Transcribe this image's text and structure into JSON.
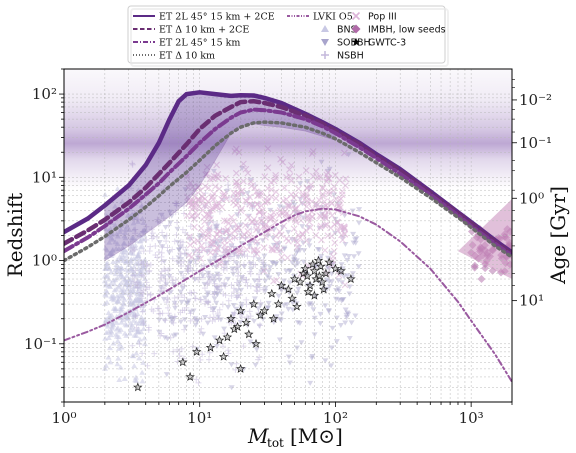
{
  "chart_data": {
    "type": "line",
    "xlabel": "M_tot [M_⊙]",
    "xlabel_main": "M",
    "xlabel_sub": "tot",
    "xlabel_unit": "[M⊙]",
    "ylabel": "Redshift",
    "ylabel_right": "Age  [Gyr]",
    "x_scale": "log",
    "y_scale": "log",
    "xlim": [
      1,
      2000
    ],
    "ylim": [
      0.02,
      200
    ],
    "grid": true,
    "legend_position": "top",
    "x_ticks": [
      {
        "value": 1,
        "label": "10⁰"
      },
      {
        "value": 10,
        "label": "10¹"
      },
      {
        "value": 100,
        "label": "10²"
      },
      {
        "value": 1000,
        "label": "10³"
      }
    ],
    "y_ticks": [
      {
        "value": 0.1,
        "label": "10⁻¹"
      },
      {
        "value": 1,
        "label": "10⁰"
      },
      {
        "value": 10,
        "label": "10¹"
      },
      {
        "value": 100,
        "label": "10²"
      }
    ],
    "right_ticks": [
      {
        "label": "10⁻²",
        "z": 85
      },
      {
        "label": "10⁻¹",
        "z": 26
      },
      {
        "label": "10⁰",
        "z": 5.6
      },
      {
        "label": "10¹",
        "z": 0.33
      }
    ],
    "series": [
      {
        "name": "ET 2L 45° 15 km + 2CE",
        "style": "solid",
        "color": "#5b2a86",
        "x": [
          1,
          1.5,
          2,
          3,
          4,
          5,
          6,
          7,
          8,
          10,
          13,
          17,
          20,
          25,
          30,
          40,
          60,
          80,
          100,
          150,
          200,
          300,
          500,
          800,
          1000,
          1500,
          2000
        ],
        "y": [
          2.2,
          3.2,
          4.6,
          8,
          14,
          26,
          50,
          82,
          100,
          105,
          100,
          95,
          97,
          96,
          90,
          78,
          58,
          46,
          38,
          26,
          19,
          12.5,
          6.8,
          3.8,
          2.9,
          1.75,
          1.25
        ]
      },
      {
        "name": "ET Δ 10 km + 2CE",
        "style": "dashed",
        "color": "#6a2e72",
        "x": [
          1,
          1.5,
          2,
          3,
          4,
          5,
          6,
          8,
          10,
          13,
          17,
          20,
          25,
          30,
          40,
          60,
          80,
          100,
          150,
          200,
          300,
          500,
          800,
          1000,
          1500,
          2000
        ],
        "y": [
          1.6,
          2.3,
          3.1,
          5,
          7.5,
          11,
          15,
          25,
          38,
          55,
          70,
          80,
          82,
          78,
          70,
          55,
          44,
          36,
          25,
          18,
          12,
          6.5,
          3.7,
          2.8,
          1.7,
          1.2
        ]
      },
      {
        "name": "ET 2L 45° 15 km",
        "style": "dashdot",
        "color": "#7b3a90",
        "x": [
          1,
          1.5,
          2,
          3,
          4,
          5,
          6,
          8,
          10,
          13,
          17,
          20,
          25,
          30,
          40,
          60,
          80,
          100,
          150,
          200,
          300,
          500,
          800,
          1000,
          1500,
          2000
        ],
        "y": [
          1.3,
          1.9,
          2.6,
          4.2,
          6.2,
          8.5,
          11.5,
          18,
          26,
          38,
          52,
          60,
          65,
          64,
          60,
          50,
          41,
          34,
          23,
          17,
          11,
          6.2,
          3.5,
          2.6,
          1.6,
          1.15
        ]
      },
      {
        "name": "ET Δ 10 km",
        "style": "dotted",
        "color": "#6b6b6b",
        "x": [
          1,
          1.5,
          2,
          3,
          4,
          5,
          6,
          8,
          10,
          13,
          17,
          20,
          25,
          30,
          40,
          60,
          80,
          100,
          150,
          200,
          300,
          500,
          800,
          1000,
          1500,
          2000
        ],
        "y": [
          1.0,
          1.45,
          1.95,
          3.1,
          4.4,
          6.0,
          7.8,
          11.5,
          16,
          24,
          34,
          40,
          45,
          46,
          45,
          40,
          34,
          29,
          20,
          15,
          10,
          5.7,
          3.3,
          2.5,
          1.5,
          1.1
        ]
      },
      {
        "name": "LVKI O5",
        "style": "dashdotdot",
        "color": "#9a5aa0",
        "x": [
          1,
          1.5,
          2,
          3,
          5,
          8,
          10,
          15,
          20,
          30,
          40,
          50,
          60,
          80,
          100,
          150,
          200,
          300,
          500,
          800,
          1000,
          1500,
          2000
        ],
        "y": [
          0.11,
          0.14,
          0.17,
          0.24,
          0.38,
          0.6,
          0.75,
          1.1,
          1.5,
          2.2,
          2.9,
          3.5,
          3.9,
          4.2,
          4.1,
          3.4,
          2.7,
          1.7,
          0.8,
          0.32,
          0.19,
          0.075,
          0.035
        ]
      }
    ],
    "bands": [
      {
        "name": "ET 2L 45° 15 km + 2CE band",
        "upper_x": [
          2,
          3,
          4,
          5,
          6,
          7,
          8,
          10,
          13,
          17,
          20,
          25,
          30,
          40,
          60,
          80,
          100
        ],
        "upper_y": [
          4.6,
          8,
          14,
          26,
          50,
          82,
          100,
          105,
          100,
          95,
          97,
          96,
          90,
          78,
          58,
          46,
          38
        ],
        "lower_x": [
          100,
          60,
          40,
          30,
          25,
          20,
          17,
          13,
          10,
          8,
          6,
          4,
          3,
          2
        ],
        "lower_y": [
          28,
          36,
          40,
          42,
          44,
          42,
          34,
          16,
          8,
          5,
          3.4,
          2.1,
          1.5,
          1.0
        ]
      }
    ],
    "scatter_groups": [
      {
        "name": "BNS",
        "marker": "triangle-up",
        "color": "#c8c8e4",
        "x_range": [
          2,
          4
        ],
        "y_range": [
          0.03,
          8
        ]
      },
      {
        "name": "SOBBH",
        "marker": "triangle-down",
        "color": "#a8a4cc",
        "x_range": [
          5,
          150
        ],
        "y_range": [
          0.03,
          20
        ]
      },
      {
        "name": "NSBH",
        "marker": "plus",
        "color": "#c4b8dc",
        "x_range": [
          3,
          30
        ],
        "y_range": [
          0.03,
          15
        ]
      },
      {
        "name": "Pop III",
        "marker": "x",
        "color": "#dcb4d8",
        "x_range": [
          8,
          120
        ],
        "y_range": [
          0.5,
          30
        ]
      },
      {
        "name": "IMBH, low seeds",
        "marker": "diamond",
        "color": "#b06aa8",
        "x_range": [
          1000,
          2000
        ],
        "y_range": [
          0.6,
          3
        ]
      },
      {
        "name": "GWTC-3",
        "marker": "star",
        "color": "#2a2a2a",
        "x": [
          3.5,
          7.5,
          8.5,
          12,
          15,
          16,
          17,
          18,
          20,
          22,
          25,
          28,
          30,
          34,
          38,
          40,
          45,
          50,
          55,
          58,
          60,
          62,
          65,
          68,
          70,
          72,
          75,
          78,
          80,
          85,
          90,
          100,
          110,
          130,
          20,
          23,
          26,
          35,
          48,
          52,
          63,
          70,
          76,
          82,
          9.5,
          14,
          19
        ],
        "y": [
          0.03,
          0.06,
          0.04,
          0.09,
          0.07,
          0.12,
          0.2,
          0.15,
          0.25,
          0.18,
          0.3,
          0.22,
          0.25,
          0.4,
          0.3,
          0.5,
          0.45,
          0.6,
          0.55,
          0.7,
          0.8,
          0.65,
          0.5,
          0.9,
          0.75,
          0.6,
          1.0,
          0.85,
          0.55,
          0.7,
          0.95,
          0.8,
          0.75,
          0.6,
          0.05,
          0.13,
          0.1,
          0.2,
          0.35,
          0.28,
          0.42,
          0.38,
          0.65,
          0.45,
          0.08,
          0.11,
          0.16
        ]
      }
    ],
    "cmb_band": {
      "z_center": 20,
      "color": "#8860b0"
    }
  }
}
